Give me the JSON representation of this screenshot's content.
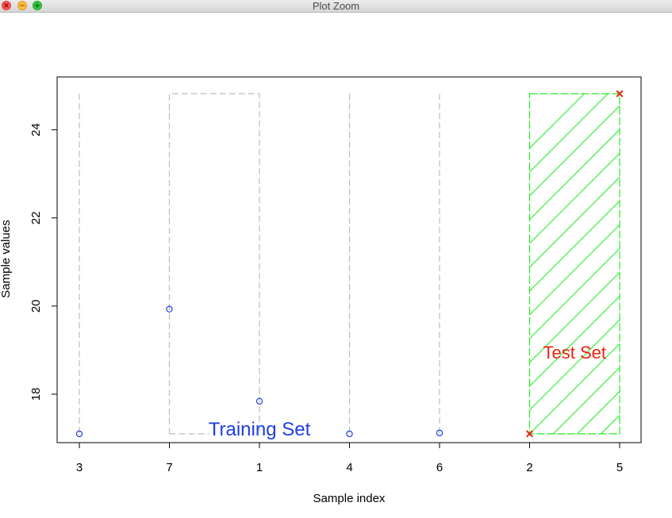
{
  "window": {
    "title": "Plot Zoom",
    "close_glyph": "×",
    "minimize_glyph": "−",
    "maximize_glyph": "+"
  },
  "chart_data": {
    "type": "scatter",
    "xlabel": "Sample index",
    "ylabel": "Sample values",
    "categories": [
      "3",
      "7",
      "1",
      "4",
      "6",
      "2",
      "5"
    ],
    "ylim": [
      16.9,
      25.2
    ],
    "yticks": [
      18,
      20,
      22,
      24
    ],
    "grid": false,
    "training": {
      "label": "Training Set",
      "color": "#1f3fe0",
      "marker": "open-circle",
      "values": [
        17.1,
        19.93,
        17.84,
        17.1,
        17.12
      ]
    },
    "test": {
      "label": "Test Set",
      "color": "#e8240f",
      "marker": "x",
      "values": [
        17.1,
        24.82
      ],
      "region_color": "#22ee22",
      "region_ymin": 17.1,
      "region_ymax": 24.82
    },
    "dashed_color": "#bdbdbd",
    "dashed_top": 24.82,
    "dashed_bottom": 17.1
  }
}
